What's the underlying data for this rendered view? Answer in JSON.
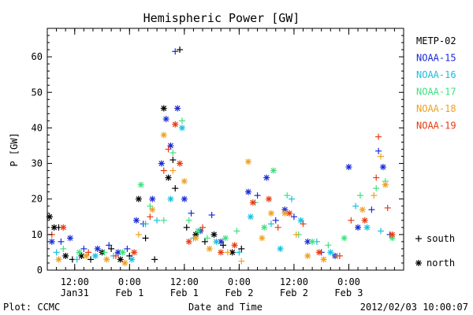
{
  "chart_data": {
    "type": "scatter",
    "title": "Hemispheric Power [GW]",
    "xlabel": "Date and Time",
    "ylabel": "P [GW]",
    "ylim": [
      0,
      68
    ],
    "yticks": [
      0,
      10,
      20,
      30,
      40,
      50,
      60
    ],
    "xlim": [
      "2012-01-31 06:00",
      "2012-02-03 12:00"
    ],
    "xticks": [
      {
        "t": "2012-01-31 12:00",
        "line1": "12:00",
        "line2": "Jan31"
      },
      {
        "t": "2012-02-01 00:00",
        "line1": "0:00",
        "line2": "Feb 1"
      },
      {
        "t": "2012-02-01 12:00",
        "line1": "12:00",
        "line2": "Feb 1"
      },
      {
        "t": "2012-02-02 00:00",
        "line1": "0:00",
        "line2": "Feb 2"
      },
      {
        "t": "2012-02-02 12:00",
        "line1": "12:00",
        "line2": "Feb 2"
      },
      {
        "t": "2012-02-03 00:00",
        "line1": "0:00",
        "line2": "Feb 3"
      }
    ],
    "grid": false,
    "legend_position": "right",
    "marker_legend": [
      {
        "symbol": "+",
        "label": "south"
      },
      {
        "symbol": "*",
        "label": "north"
      }
    ],
    "series": [
      {
        "name": "METP-02",
        "color": "#000000",
        "points": [
          [
            "2012-01-31 06:30",
            15,
            "*"
          ],
          [
            "2012-01-31 07:30",
            12,
            "*"
          ],
          [
            "2012-01-31 08:30",
            12,
            "+"
          ],
          [
            "2012-01-31 10:00",
            4,
            "*"
          ],
          [
            "2012-01-31 11:30",
            3,
            "+"
          ],
          [
            "2012-01-31 13:30",
            4,
            "*"
          ],
          [
            "2012-01-31 15:30",
            3,
            "+"
          ],
          [
            "2012-01-31 18:00",
            5,
            "*"
          ],
          [
            "2012-01-31 20:00",
            6,
            "+"
          ],
          [
            "2012-01-31 22:00",
            3,
            "*"
          ],
          [
            "2012-02-01 00:00",
            4,
            "+"
          ],
          [
            "2012-02-01 02:00",
            20,
            "*"
          ],
          [
            "2012-02-01 03:30",
            9,
            "+"
          ],
          [
            "2012-02-01 05:30",
            3,
            "+"
          ],
          [
            "2012-02-01 07:30",
            45.5,
            "*"
          ],
          [
            "2012-02-01 08:30",
            26,
            "*"
          ],
          [
            "2012-02-01 09:30",
            31,
            "+"
          ],
          [
            "2012-02-01 10:00",
            23,
            "+"
          ],
          [
            "2012-02-01 11:00",
            62,
            "+"
          ],
          [
            "2012-02-01 12:30",
            12,
            "+"
          ],
          [
            "2012-02-01 14:30",
            10,
            "*"
          ],
          [
            "2012-02-01 16:30",
            8,
            "+"
          ],
          [
            "2012-02-01 18:30",
            10,
            "*"
          ],
          [
            "2012-02-01 20:30",
            7,
            "+"
          ],
          [
            "2012-02-01 22:30",
            5,
            "*"
          ],
          [
            "2012-02-02 00:30",
            6,
            "+"
          ]
        ]
      },
      {
        "name": "NOAA-15",
        "color": "#1a2ad8",
        "points": [
          [
            "2012-01-31 07:00",
            8,
            "*"
          ],
          [
            "2012-01-31 09:00",
            8,
            "+"
          ],
          [
            "2012-01-31 11:00",
            9,
            "*"
          ],
          [
            "2012-01-31 14:00",
            6,
            "+"
          ],
          [
            "2012-01-31 17:00",
            6,
            "*"
          ],
          [
            "2012-01-31 19:30",
            7,
            "+"
          ],
          [
            "2012-01-31 21:30",
            5,
            "*"
          ],
          [
            "2012-01-31 23:30",
            6,
            "+"
          ],
          [
            "2012-02-01 01:30",
            14,
            "*"
          ],
          [
            "2012-02-01 03:00",
            13,
            "+"
          ],
          [
            "2012-02-01 05:00",
            20,
            "*"
          ],
          [
            "2012-02-01 07:00",
            30,
            "*"
          ],
          [
            "2012-02-01 08:00",
            42.5,
            "*"
          ],
          [
            "2012-02-01 09:00",
            35,
            "*"
          ],
          [
            "2012-02-01 10:00",
            61.5,
            "+"
          ],
          [
            "2012-02-01 10:30",
            45.5,
            "*"
          ],
          [
            "2012-02-01 12:00",
            20,
            "*"
          ],
          [
            "2012-02-01 13:30",
            16,
            "+"
          ],
          [
            "2012-02-01 15:30",
            11,
            "*"
          ],
          [
            "2012-02-01 18:00",
            15.5,
            "+"
          ],
          [
            "2012-02-01 20:00",
            8,
            "*"
          ],
          [
            "2012-02-02 02:00",
            22,
            "*"
          ],
          [
            "2012-02-02 04:00",
            21,
            "+"
          ],
          [
            "2012-02-02 06:00",
            26,
            "*"
          ],
          [
            "2012-02-02 08:00",
            14,
            "+"
          ],
          [
            "2012-02-02 10:00",
            17,
            "*"
          ],
          [
            "2012-02-02 12:00",
            15,
            "+"
          ],
          [
            "2012-02-02 15:00",
            8,
            "*"
          ],
          [
            "2012-02-02 18:00",
            5,
            "+"
          ],
          [
            "2012-02-02 21:00",
            4,
            "*"
          ],
          [
            "2012-02-03 00:00",
            29,
            "*"
          ],
          [
            "2012-02-03 02:00",
            12,
            "*"
          ],
          [
            "2012-02-03 05:00",
            17,
            "+"
          ],
          [
            "2012-02-03 06:30",
            33.5,
            "+"
          ],
          [
            "2012-02-03 07:30",
            29,
            "*"
          ],
          [
            "2012-02-03 09:00",
            10,
            "+"
          ]
        ]
      },
      {
        "name": "NOAA-16",
        "color": "#18c0e0",
        "points": [
          [
            "2012-01-31 08:00",
            5,
            "+"
          ],
          [
            "2012-01-31 12:30",
            3,
            "+"
          ],
          [
            "2012-01-31 16:30",
            4,
            "*"
          ],
          [
            "2012-01-31 20:30",
            4,
            "+"
          ],
          [
            "2012-02-01 00:30",
            3,
            "*"
          ],
          [
            "2012-02-01 03:30",
            13,
            "+"
          ],
          [
            "2012-02-01 06:00",
            14,
            "+"
          ],
          [
            "2012-02-01 09:00",
            20,
            "*"
          ],
          [
            "2012-02-01 11:30",
            40,
            "*"
          ],
          [
            "2012-02-01 14:00",
            9,
            "+"
          ],
          [
            "2012-02-01 19:00",
            8,
            "*"
          ],
          [
            "2012-02-02 00:00",
            5,
            "+"
          ],
          [
            "2012-02-02 02:30",
            15,
            "*"
          ],
          [
            "2012-02-02 07:00",
            13,
            "+"
          ],
          [
            "2012-02-02 09:00",
            6,
            "*"
          ],
          [
            "2012-02-02 11:30",
            20,
            "+"
          ],
          [
            "2012-02-02 13:30",
            14,
            "*"
          ],
          [
            "2012-02-02 17:00",
            8,
            "+"
          ],
          [
            "2012-02-02 20:00",
            5,
            "*"
          ],
          [
            "2012-02-03 01:30",
            18,
            "+"
          ],
          [
            "2012-02-03 04:00",
            12,
            "*"
          ],
          [
            "2012-02-03 07:00",
            11,
            "+"
          ]
        ]
      },
      {
        "name": "NOAA-17",
        "color": "#40e080",
        "points": [
          [
            "2012-01-31 09:30",
            6,
            "+"
          ],
          [
            "2012-01-31 13:00",
            5,
            "*"
          ],
          [
            "2012-01-31 18:30",
            5,
            "+"
          ],
          [
            "2012-01-31 22:30",
            5,
            "*"
          ],
          [
            "2012-02-01 02:30",
            24,
            "*"
          ],
          [
            "2012-02-01 04:30",
            18,
            "+"
          ],
          [
            "2012-02-01 07:30",
            14,
            "+"
          ],
          [
            "2012-02-01 09:30",
            33,
            "+"
          ],
          [
            "2012-02-01 11:30",
            42,
            "+"
          ],
          [
            "2012-02-01 13:00",
            14,
            "+"
          ],
          [
            "2012-02-01 15:00",
            11,
            "*"
          ],
          [
            "2012-02-01 17:00",
            9,
            "+"
          ],
          [
            "2012-02-01 21:00",
            9,
            "*"
          ],
          [
            "2012-02-01 23:30",
            11,
            "+"
          ],
          [
            "2012-02-02 03:30",
            19,
            "+"
          ],
          [
            "2012-02-02 05:30",
            12,
            "*"
          ],
          [
            "2012-02-02 07:30",
            28,
            "*"
          ],
          [
            "2012-02-02 10:30",
            21,
            "+"
          ],
          [
            "2012-02-02 13:00",
            10,
            "+"
          ],
          [
            "2012-02-02 16:00",
            8,
            "*"
          ],
          [
            "2012-02-02 19:30",
            7,
            "+"
          ],
          [
            "2012-02-02 23:00",
            9,
            "*"
          ],
          [
            "2012-02-03 02:30",
            21,
            "+"
          ],
          [
            "2012-02-03 06:00",
            23,
            "+"
          ],
          [
            "2012-02-03 08:00",
            25,
            "+"
          ],
          [
            "2012-02-03 09:30",
            9,
            "*"
          ]
        ]
      },
      {
        "name": "NOAA-18",
        "color": "#f0a020",
        "points": [
          [
            "2012-01-31 08:30",
            3,
            "*"
          ],
          [
            "2012-01-31 14:30",
            4,
            "*"
          ],
          [
            "2012-01-31 19:00",
            3,
            "*"
          ],
          [
            "2012-01-31 23:00",
            2,
            "*"
          ],
          [
            "2012-02-01 02:00",
            10,
            "+"
          ],
          [
            "2012-02-01 05:00",
            17,
            "*"
          ],
          [
            "2012-02-01 07:30",
            38,
            "*"
          ],
          [
            "2012-02-01 09:30",
            28,
            "+"
          ],
          [
            "2012-02-01 12:00",
            25,
            "*"
          ],
          [
            "2012-02-01 14:30",
            9,
            "*"
          ],
          [
            "2012-02-01 17:30",
            6,
            "*"
          ],
          [
            "2012-02-01 21:30",
            5,
            "+"
          ],
          [
            "2012-02-02 00:30",
            2.5,
            "+"
          ],
          [
            "2012-02-02 02:00",
            30.5,
            "*"
          ],
          [
            "2012-02-02 05:00",
            9,
            "*"
          ],
          [
            "2012-02-02 07:00",
            16,
            "*"
          ],
          [
            "2012-02-02 10:00",
            16,
            "*"
          ],
          [
            "2012-02-02 12:30",
            10,
            "+"
          ],
          [
            "2012-02-02 15:00",
            4,
            "*"
          ],
          [
            "2012-02-02 18:30",
            3,
            "*"
          ],
          [
            "2012-02-02 21:30",
            4,
            "+"
          ],
          [
            "2012-02-03 03:00",
            17,
            "*"
          ],
          [
            "2012-02-03 05:30",
            21,
            "+"
          ],
          [
            "2012-02-03 07:00",
            32,
            "+"
          ],
          [
            "2012-02-03 08:00",
            24,
            "*"
          ]
        ]
      },
      {
        "name": "NOAA-19",
        "color": "#e83a12",
        "points": [
          [
            "2012-01-31 07:00",
            10,
            "+"
          ],
          [
            "2012-01-31 09:30",
            12,
            "*"
          ],
          [
            "2012-01-31 15:00",
            5,
            "+"
          ],
          [
            "2012-01-31 21:00",
            4,
            "+"
          ],
          [
            "2012-02-01 01:00",
            5,
            "*"
          ],
          [
            "2012-02-01 04:30",
            15,
            "+"
          ],
          [
            "2012-02-01 07:30",
            28,
            "+"
          ],
          [
            "2012-02-01 08:30",
            34,
            "+"
          ],
          [
            "2012-02-01 10:00",
            41,
            "*"
          ],
          [
            "2012-02-01 11:00",
            30,
            "*"
          ],
          [
            "2012-02-01 13:00",
            8,
            "*"
          ],
          [
            "2012-02-01 16:00",
            12,
            "+"
          ],
          [
            "2012-02-01 20:00",
            5,
            "*"
          ],
          [
            "2012-02-01 23:00",
            7,
            "*"
          ],
          [
            "2012-02-02 03:00",
            19,
            "*"
          ],
          [
            "2012-02-02 06:30",
            20,
            "*"
          ],
          [
            "2012-02-02 08:30",
            12,
            "+"
          ],
          [
            "2012-02-02 11:00",
            16,
            "*"
          ],
          [
            "2012-02-02 14:00",
            13,
            "+"
          ],
          [
            "2012-02-02 17:30",
            5,
            "*"
          ],
          [
            "2012-02-02 22:00",
            4,
            "+"
          ],
          [
            "2012-02-03 00:30",
            14,
            "+"
          ],
          [
            "2012-02-03 03:30",
            14,
            "*"
          ],
          [
            "2012-02-03 06:00",
            26,
            "+"
          ],
          [
            "2012-02-03 06:30",
            37.5,
            "+"
          ],
          [
            "2012-02-03 08:30",
            17.5,
            "+"
          ],
          [
            "2012-02-03 09:30",
            10,
            "*"
          ]
        ]
      }
    ]
  },
  "footer": {
    "plot_credit": "Plot: CCMC",
    "timestamp": "2012/02/03 10:00:07"
  }
}
